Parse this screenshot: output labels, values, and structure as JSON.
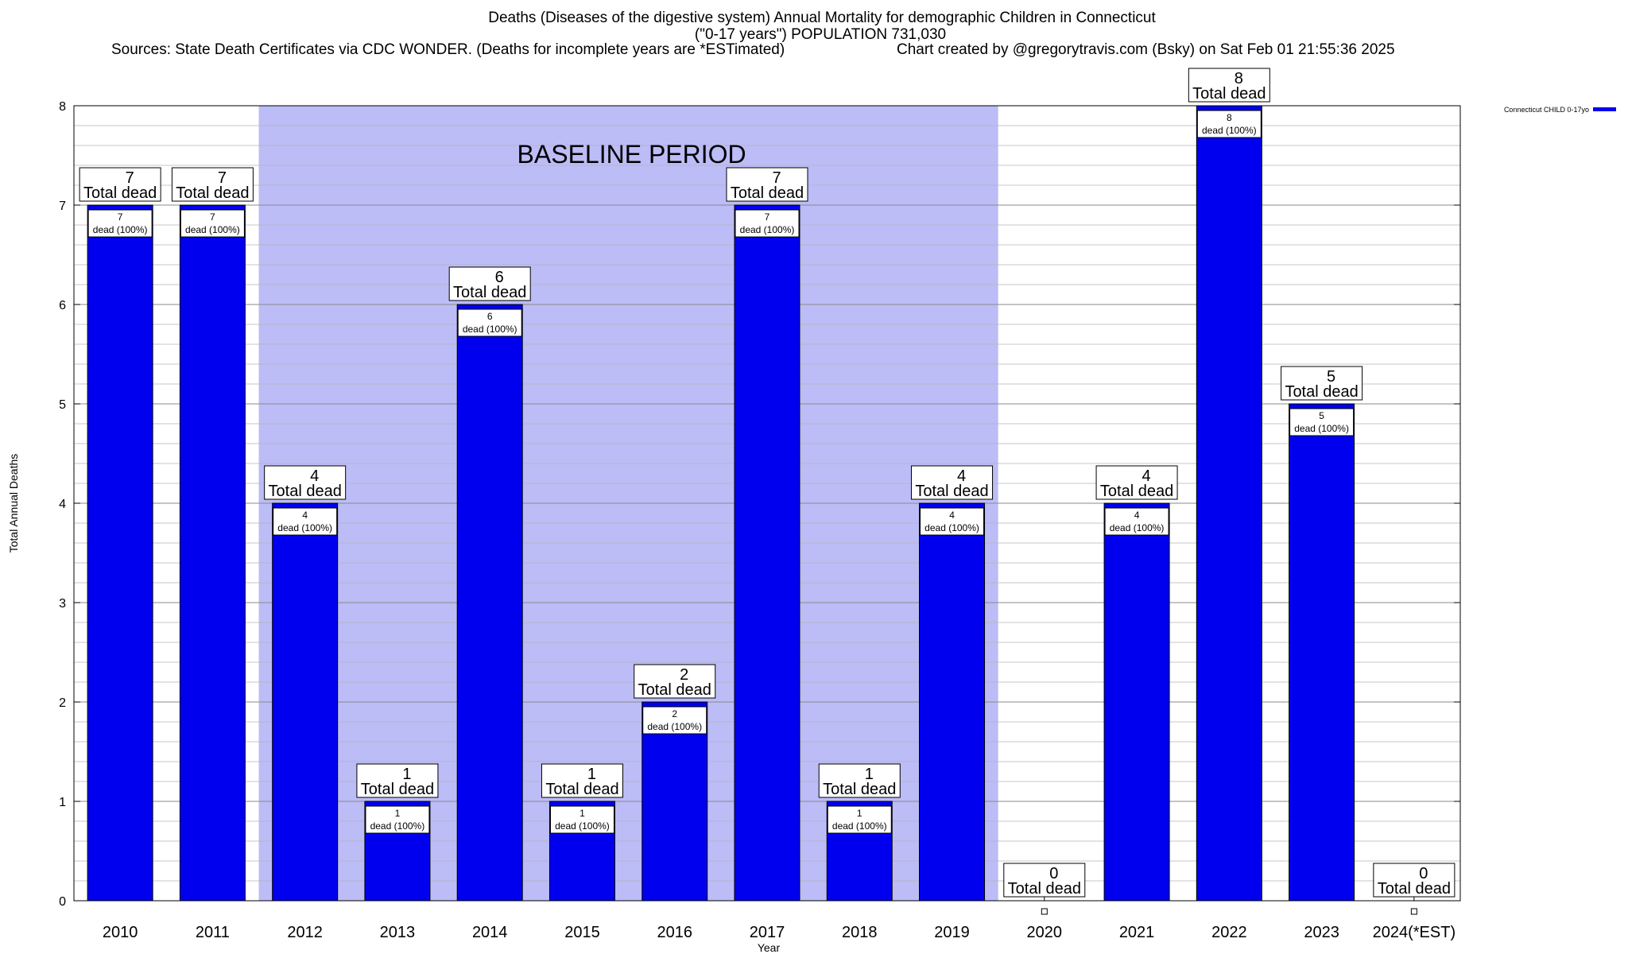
{
  "header": {
    "title_line1": "Deaths (Diseases of the digestive system) Annual Mortality for demographic Children in Connecticut",
    "title_line2": "(\"0-17 years\") POPULATION 731,030",
    "sources": "Sources: State Death Certificates via CDC WONDER. (Deaths for incomplete years are *ESTimated)",
    "credit": "Chart created by @gregorytravis.com (Bsky) on Sat Feb 01 21:55:36 2025"
  },
  "chart_data": {
    "type": "bar",
    "xlabel": "Year",
    "ylabel": "Total Annual Deaths",
    "ylim": [
      0,
      8
    ],
    "yticks": [
      0,
      1,
      2,
      3,
      4,
      5,
      6,
      7,
      8
    ],
    "categories": [
      "2010",
      "2011",
      "2012",
      "2013",
      "2014",
      "2015",
      "2016",
      "2017",
      "2018",
      "2019",
      "2020",
      "2021",
      "2022",
      "2023",
      "2024(*EST)"
    ],
    "series": [
      {
        "name": "Connecticut CHILD 0-17yo",
        "color": "#0000ee",
        "values": [
          7,
          7,
          4,
          1,
          6,
          1,
          2,
          7,
          1,
          4,
          0,
          4,
          8,
          5,
          0
        ]
      }
    ],
    "total_label_suffix": "Total dead",
    "segment_label_suffix": "dead (100%)",
    "baseline": {
      "label": "BASELINE PERIOD",
      "from": "2012",
      "to": "2019",
      "color": "#bcbcf7"
    },
    "grid": true,
    "legend_position": "top-right"
  }
}
